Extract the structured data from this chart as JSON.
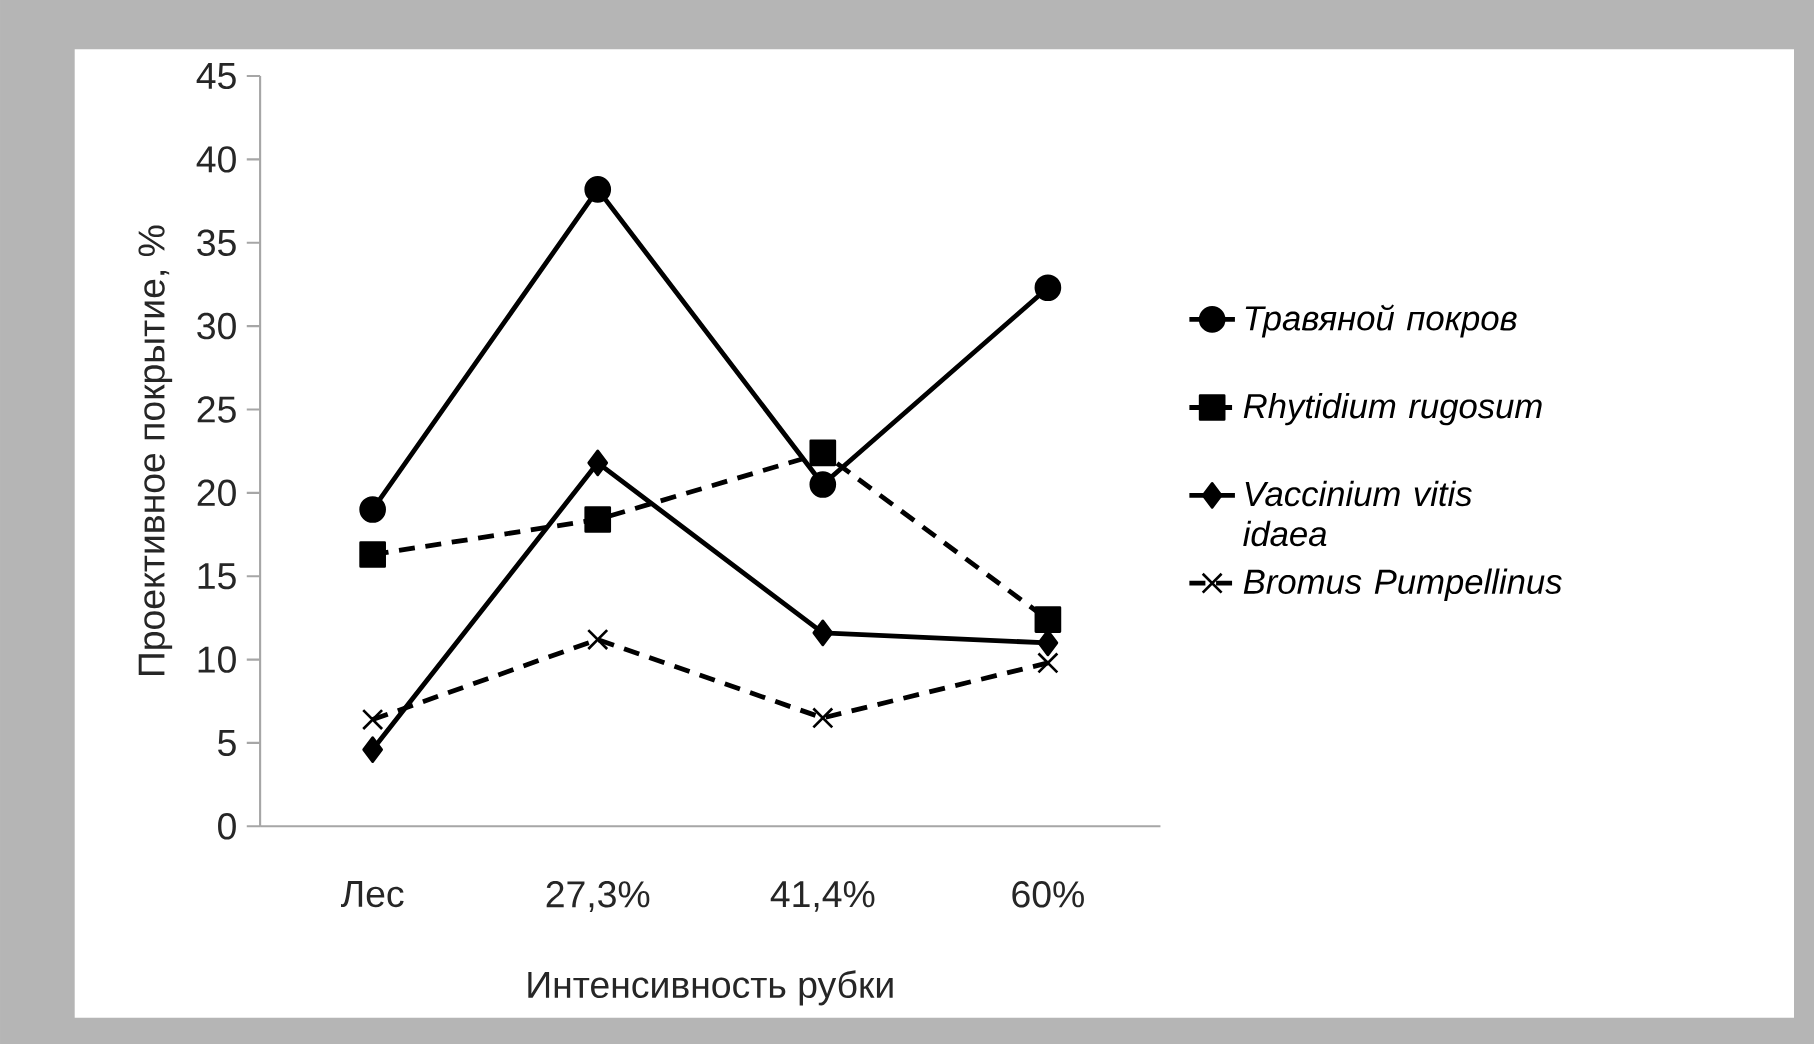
{
  "chart_data": {
    "type": "line",
    "xlabel": "Интенсивность рубки",
    "ylabel": "Проективное покрытие, %",
    "categories": [
      "Лес",
      "27,3%",
      "41,4%",
      "60%"
    ],
    "ylim": [
      0,
      45
    ],
    "yticks": [
      0,
      5,
      10,
      15,
      20,
      25,
      30,
      35,
      40,
      45
    ],
    "grid": false,
    "legend": "right",
    "series": [
      {
        "name": "Травяной покров",
        "color": "#000000",
        "marker": "circle",
        "line_style": "solid",
        "values": [
          19,
          38.2,
          20.5,
          32.3
        ]
      },
      {
        "name": "Rhytidium rugosum",
        "color": "#000000",
        "marker": "square",
        "line_style": "dashed",
        "values": [
          16.3,
          18.4,
          22.4,
          12.4
        ]
      },
      {
        "name": "Vaccinium vitis idaea",
        "color": "#000000",
        "marker": "diamond",
        "line_style": "solid",
        "values": [
          4.6,
          21.8,
          11.6,
          11.0
        ]
      },
      {
        "name": "Bromus Pumpellinus",
        "color": "#000000",
        "marker": "cross",
        "line_style": "dashed",
        "values": [
          6.4,
          11.2,
          6.5,
          9.8
        ]
      }
    ]
  }
}
